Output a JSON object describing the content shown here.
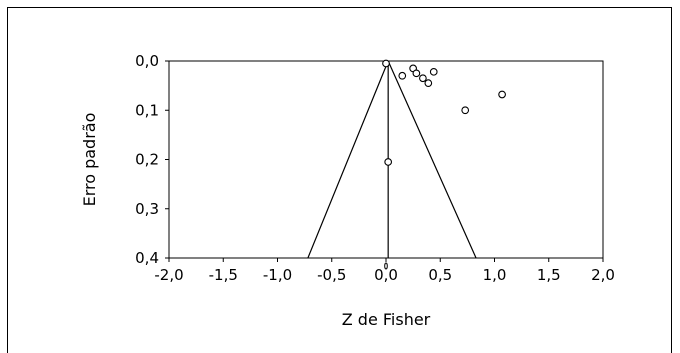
{
  "chart_data": {
    "type": "scatter",
    "title": "",
    "xlabel": "Z de Fisher",
    "ylabel": "Erro padrão",
    "xlim": [
      -2.0,
      2.0
    ],
    "ylim": [
      0.0,
      0.4
    ],
    "y_inverted": true,
    "xticks": [
      "-2,0",
      "-1,5",
      "-1,0",
      "-0,5",
      "0,0",
      "0,5",
      "1,0",
      "1,5",
      "2,0"
    ],
    "yticks": [
      "0,0",
      "0,1",
      "0,2",
      "0,3",
      "0,4"
    ],
    "grid": false,
    "legend": "none",
    "points": [
      {
        "x": 0.0,
        "y": 0.005
      },
      {
        "x": 0.15,
        "y": 0.03
      },
      {
        "x": 0.25,
        "y": 0.015
      },
      {
        "x": 0.28,
        "y": 0.025
      },
      {
        "x": 0.34,
        "y": 0.035
      },
      {
        "x": 0.39,
        "y": 0.045
      },
      {
        "x": 0.44,
        "y": 0.022
      },
      {
        "x": 0.73,
        "y": 0.1
      },
      {
        "x": 1.07,
        "y": 0.068
      },
      {
        "x": 0.02,
        "y": 0.205
      }
    ],
    "center_x": 0.02,
    "funnel_bottom": [
      -0.72,
      0.83
    ],
    "colors": {
      "axis": "#000000",
      "marker_fill": "#ffffff",
      "marker_stroke": "#000000"
    }
  }
}
